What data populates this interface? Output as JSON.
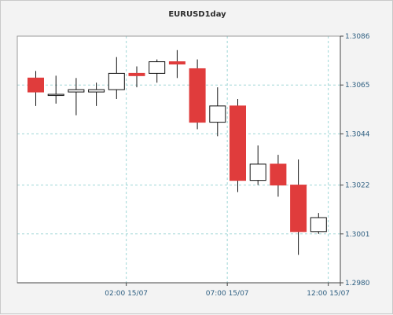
{
  "chart_data": {
    "type": "candlestick",
    "title": "EURUSD1day",
    "xlabel": "",
    "ylabel": "",
    "ylim": [
      1.298,
      1.3086
    ],
    "y_ticks": [
      "1.3086",
      "1.3065",
      "1.3044",
      "1.3022",
      "1.3001",
      "1.2980"
    ],
    "y_tick_values": [
      1.3086,
      1.3065,
      1.3044,
      1.3022,
      1.3001,
      1.298
    ],
    "x_ticks": [
      "02:00 15/07",
      "07:00 15/07",
      "12:00 15/07"
    ],
    "x_tick_index": [
      4.5,
      9.5,
      14.5
    ],
    "grid": true,
    "legend": "none",
    "colors": {
      "bull": "#ffffff",
      "bear": "#e03c3c",
      "grid": "#9fd6d6",
      "axis_text": "#2d5e80",
      "plot_bg": "#ffffff"
    },
    "candles": [
      {
        "open": 1.3068,
        "high": 1.3071,
        "low": 1.3056,
        "close": 1.3062
      },
      {
        "open": 1.3061,
        "high": 1.3069,
        "low": 1.3057,
        "close": 1.3061
      },
      {
        "open": 1.3062,
        "high": 1.3068,
        "low": 1.3052,
        "close": 1.3063
      },
      {
        "open": 1.3062,
        "high": 1.3066,
        "low": 1.3056,
        "close": 1.3063
      },
      {
        "open": 1.3063,
        "high": 1.3077,
        "low": 1.3059,
        "close": 1.307
      },
      {
        "open": 1.307,
        "high": 1.3073,
        "low": 1.3064,
        "close": 1.3069
      },
      {
        "open": 1.307,
        "high": 1.3076,
        "low": 1.3066,
        "close": 1.3075
      },
      {
        "open": 1.3075,
        "high": 1.308,
        "low": 1.3068,
        "close": 1.3074
      },
      {
        "open": 1.3072,
        "high": 1.3076,
        "low": 1.3046,
        "close": 1.3049
      },
      {
        "open": 1.3049,
        "high": 1.3064,
        "low": 1.3043,
        "close": 1.3056
      },
      {
        "open": 1.3056,
        "high": 1.3059,
        "low": 1.3019,
        "close": 1.3024
      },
      {
        "open": 1.3024,
        "high": 1.3039,
        "low": 1.3022,
        "close": 1.3031
      },
      {
        "open": 1.3031,
        "high": 1.3035,
        "low": 1.3017,
        "close": 1.3022
      },
      {
        "open": 1.3022,
        "high": 1.3033,
        "low": 1.2992,
        "close": 1.3002
      },
      {
        "open": 1.3002,
        "high": 1.301,
        "low": 1.3001,
        "close": 1.3008
      }
    ]
  }
}
